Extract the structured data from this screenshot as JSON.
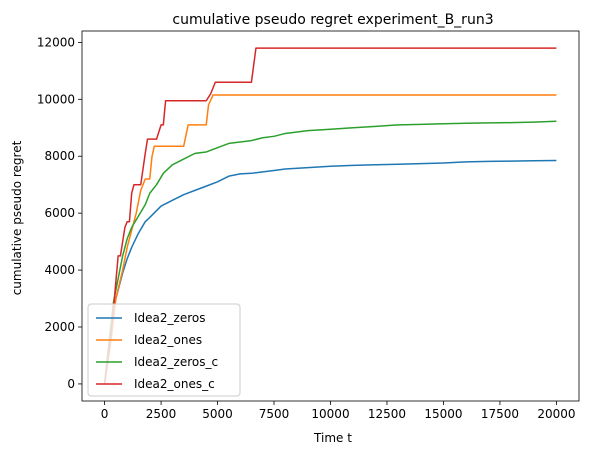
{
  "chart_data": {
    "type": "line",
    "title": "cumulative pseudo regret experiment_B_run3",
    "xlabel": "Time t",
    "ylabel": "cumulative pseudo regret",
    "xlim": [
      -1000,
      21000
    ],
    "ylim": [
      -600,
      12400
    ],
    "xticks": [
      0,
      2500,
      5000,
      7500,
      10000,
      12500,
      15000,
      17500,
      20000
    ],
    "yticks": [
      0,
      2000,
      4000,
      6000,
      8000,
      10000,
      12000
    ],
    "grid": false,
    "legend_position": "lower-left",
    "series": [
      {
        "name": "Idea2_zeros",
        "color": "#1f77b4",
        "x": [
          0,
          200,
          400,
          500,
          600,
          800,
          1000,
          1200,
          1500,
          1800,
          2000,
          2500,
          3000,
          3500,
          4000,
          4500,
          5000,
          5500,
          6000,
          6500,
          7000,
          7500,
          8000,
          9000,
          10000,
          11000,
          12000,
          13000,
          14000,
          15000,
          16000,
          17000,
          18000,
          19000,
          20000
        ],
        "y": [
          0,
          1400,
          2600,
          3000,
          3300,
          3900,
          4400,
          4800,
          5300,
          5700,
          5850,
          6250,
          6450,
          6650,
          6800,
          6950,
          7100,
          7300,
          7380,
          7400,
          7450,
          7500,
          7550,
          7600,
          7650,
          7680,
          7700,
          7720,
          7740,
          7760,
          7800,
          7820,
          7830,
          7840,
          7850
        ]
      },
      {
        "name": "Idea2_ones",
        "color": "#ff7f0e",
        "x": [
          0,
          300,
          500,
          800,
          1000,
          1200,
          1400,
          1600,
          1800,
          2000,
          2100,
          2200,
          2500,
          3000,
          3500,
          3700,
          4000,
          4500,
          4600,
          4800,
          5000,
          6000,
          8000,
          10000,
          12000,
          14000,
          16000,
          18000,
          20000
        ],
        "y": [
          0,
          1600,
          3000,
          4000,
          4800,
          5400,
          6000,
          6800,
          7200,
          7200,
          8000,
          8350,
          8350,
          8350,
          8350,
          9100,
          9100,
          9100,
          9800,
          10150,
          10150,
          10150,
          10150,
          10150,
          10150,
          10150,
          10150,
          10150,
          10150
        ]
      },
      {
        "name": "Idea2_zeros_c",
        "color": "#2ca02c",
        "x": [
          0,
          200,
          400,
          600,
          800,
          1000,
          1200,
          1500,
          1800,
          2000,
          2300,
          2600,
          3000,
          3500,
          4000,
          4500,
          5000,
          5500,
          6000,
          6500,
          7000,
          7500,
          8000,
          9000,
          10000,
          11000,
          12000,
          13000,
          14000,
          15000,
          16000,
          17000,
          18000,
          19000,
          20000
        ],
        "y": [
          0,
          1500,
          2900,
          3700,
          4500,
          5100,
          5500,
          5900,
          6300,
          6700,
          7000,
          7400,
          7700,
          7900,
          8100,
          8150,
          8300,
          8450,
          8500,
          8550,
          8650,
          8700,
          8800,
          8900,
          8950,
          9000,
          9050,
          9100,
          9120,
          9140,
          9160,
          9170,
          9180,
          9200,
          9230
        ]
      },
      {
        "name": "Idea2_ones_c",
        "color": "#d62728",
        "x": [
          0,
          300,
          500,
          600,
          700,
          800,
          900,
          1000,
          1100,
          1200,
          1300,
          1400,
          1600,
          1800,
          1900,
          2000,
          2300,
          2500,
          2600,
          2700,
          3000,
          4500,
          4700,
          4900,
          5500,
          6500,
          6600,
          6700,
          8000,
          10000,
          12000,
          14000,
          16000,
          18000,
          20000
        ],
        "y": [
          0,
          1800,
          3600,
          4500,
          4500,
          5000,
          5500,
          5700,
          5700,
          6700,
          7000,
          7000,
          7000,
          8100,
          8600,
          8600,
          8600,
          9100,
          9100,
          9950,
          9950,
          9950,
          10200,
          10600,
          10600,
          10600,
          11200,
          11800,
          11800,
          11800,
          11800,
          11800,
          11800,
          11800,
          11800
        ]
      }
    ]
  }
}
